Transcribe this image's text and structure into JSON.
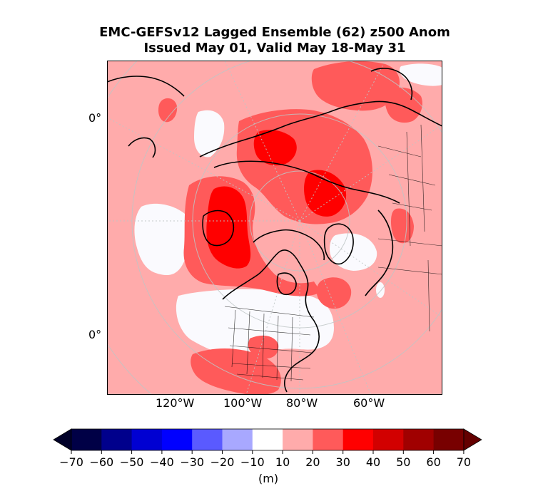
{
  "title": {
    "line1": "EMC-GEFSv12 Lagged Ensemble (62) z500 Anom",
    "line2": "Issued May 01, Valid May 18-May 31"
  },
  "map": {
    "projection": "north-polar-stereographic",
    "lat_labels": [
      "0°",
      "0°"
    ],
    "lon_labels": [
      "120°W",
      "100°W",
      "80°W",
      "60°W"
    ],
    "regions": [
      {
        "name": "alaska-pacific-high-anomaly",
        "category": "20-30"
      },
      {
        "name": "alaska-core-anomaly",
        "category": "30-40"
      },
      {
        "name": "eurasia-high-anomaly",
        "category": "20-30"
      },
      {
        "name": "siberia-core-anomaly",
        "category": "30-40"
      },
      {
        "name": "north-atlantic-anomaly",
        "category": "20-30"
      },
      {
        "name": "scandinavia-anomaly",
        "category": "20-30"
      },
      {
        "name": "central-pacific-neutral",
        "category": "-10-10"
      },
      {
        "name": "eastern-north-america-neutral",
        "category": "-10-10"
      },
      {
        "name": "central-asia-neutral",
        "category": "-10-10"
      }
    ]
  },
  "colorbar": {
    "ticks": [
      "−70",
      "−60",
      "−50",
      "−40",
      "−30",
      "−20",
      "−10",
      "10",
      "20",
      "30",
      "40",
      "50",
      "60",
      "70"
    ],
    "colors": [
      "#000046",
      "#00008c",
      "#0000d2",
      "#0000ff",
      "#5a5aff",
      "#a8a8ff",
      "#ffffff",
      "#ffabab",
      "#ff5a5a",
      "#ff0000",
      "#d20000",
      "#a00000",
      "#780000"
    ],
    "under_color": "#000028",
    "over_color": "#640000",
    "unit": "(m)"
  }
}
